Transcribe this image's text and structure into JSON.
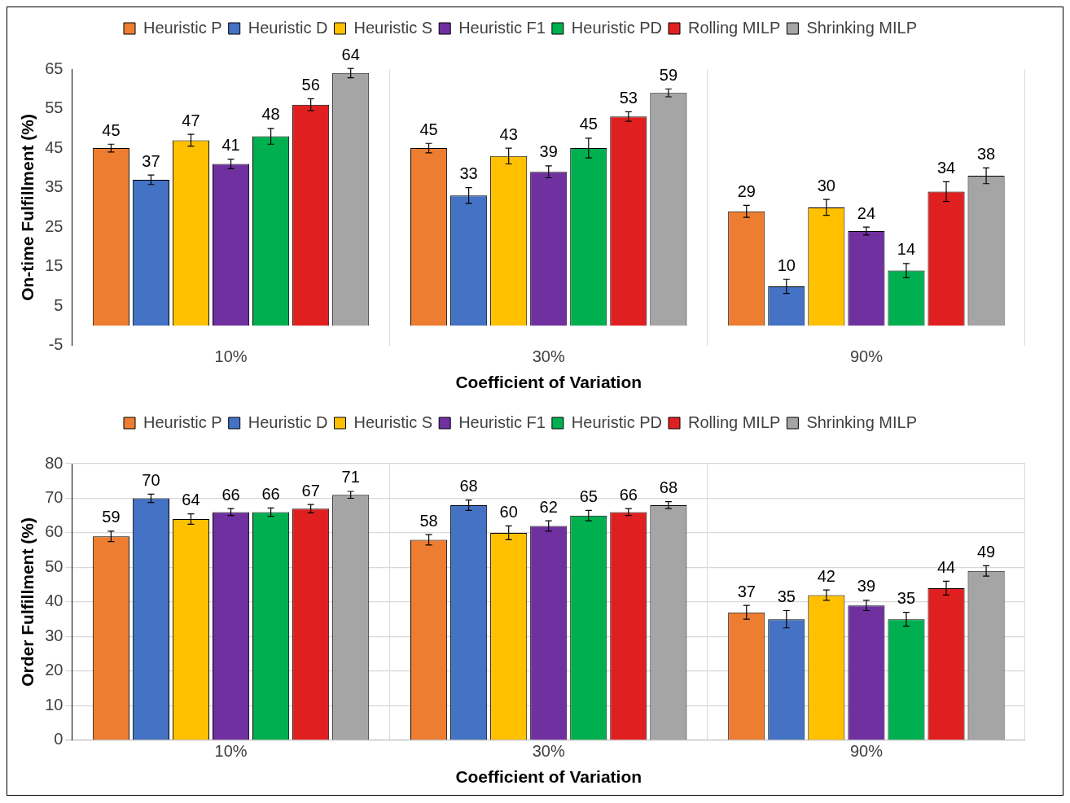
{
  "chart_data": [
    {
      "type": "bar",
      "xlabel": "Coefficient of Variation",
      "ylabel": "On-time Fulfillment (%)",
      "categories": [
        "10%",
        "30%",
        "90%"
      ],
      "ylim": [
        -5,
        65
      ],
      "yticks": [
        -5,
        5,
        15,
        25,
        35,
        45,
        55,
        65
      ],
      "grid": "x",
      "legend": "top",
      "data_labels": true,
      "series": [
        {
          "name": "Heuristic P",
          "color": "#ed7d31",
          "values": [
            45,
            45,
            29
          ],
          "errors": [
            1,
            1.2,
            1.5
          ]
        },
        {
          "name": "Heuristic D",
          "color": "#4472c4",
          "values": [
            37,
            33,
            10
          ],
          "errors": [
            1.2,
            2,
            1.8
          ]
        },
        {
          "name": "Heuristic S",
          "color": "#ffc000",
          "values": [
            47,
            43,
            30
          ],
          "errors": [
            1.5,
            2,
            2
          ]
        },
        {
          "name": "Heuristic F1",
          "color": "#7030a0",
          "values": [
            41,
            39,
            24
          ],
          "errors": [
            1.2,
            1.5,
            1
          ]
        },
        {
          "name": "Heuristic PD",
          "color": "#00b050",
          "values": [
            48,
            45,
            14
          ],
          "errors": [
            2,
            2.5,
            1.8
          ]
        },
        {
          "name": "Rolling MILP",
          "color": "#e02020",
          "values": [
            56,
            53,
            34
          ],
          "errors": [
            1.5,
            1.2,
            2.5
          ]
        },
        {
          "name": "Shrinking MILP",
          "color": "#a5a5a5",
          "values": [
            64,
            59,
            38
          ],
          "errors": [
            1.2,
            1,
            2
          ]
        }
      ]
    },
    {
      "type": "bar",
      "xlabel": "Coefficient of Variation",
      "ylabel": "Order Fulfillment (%)",
      "categories": [
        "10%",
        "30%",
        "90%"
      ],
      "ylim": [
        0,
        80
      ],
      "yticks": [
        0,
        10,
        20,
        30,
        40,
        50,
        60,
        70,
        80
      ],
      "grid": true,
      "legend": "top",
      "data_labels": true,
      "series": [
        {
          "name": "Heuristic P",
          "color": "#ed7d31",
          "values": [
            59,
            58,
            37
          ],
          "errors": [
            1.5,
            1.5,
            2
          ]
        },
        {
          "name": "Heuristic D",
          "color": "#4472c4",
          "values": [
            70,
            68,
            35
          ],
          "errors": [
            1.2,
            1.5,
            2.5
          ]
        },
        {
          "name": "Heuristic S",
          "color": "#ffc000",
          "values": [
            64,
            60,
            42
          ],
          "errors": [
            1.5,
            2,
            1.5
          ]
        },
        {
          "name": "Heuristic F1",
          "color": "#7030a0",
          "values": [
            66,
            62,
            39
          ],
          "errors": [
            1,
            1.5,
            1.5
          ]
        },
        {
          "name": "Heuristic PD",
          "color": "#00b050",
          "values": [
            66,
            65,
            35
          ],
          "errors": [
            1.2,
            1.5,
            2
          ]
        },
        {
          "name": "Rolling MILP",
          "color": "#e02020",
          "values": [
            67,
            66,
            44
          ],
          "errors": [
            1.2,
            1,
            2
          ]
        },
        {
          "name": "Shrinking MILP",
          "color": "#a5a5a5",
          "values": [
            71,
            68,
            49
          ],
          "errors": [
            1,
            1,
            1.5
          ]
        }
      ]
    }
  ]
}
